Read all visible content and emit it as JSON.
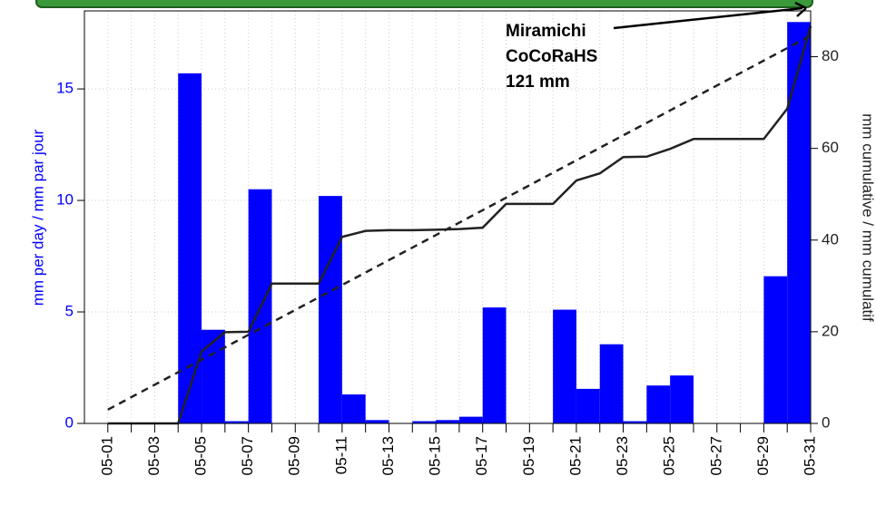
{
  "chart_data": {
    "type": "bar",
    "ylabel": "mm per day / mm par jour",
    "y2label": "mm cumulative / mm cumulatif",
    "annotation": [
      "Miramichi",
      "CoCoRaHS",
      "121 mm"
    ],
    "categories": [
      "05-01",
      null,
      "05-03",
      null,
      "05-05",
      null,
      "05-07",
      null,
      "05-09",
      null,
      "05-11",
      null,
      "05-13",
      null,
      "05-15",
      null,
      "05-17",
      null,
      "05-19",
      null,
      "05-21",
      null,
      "05-23",
      null,
      "05-25",
      null,
      "05-27",
      null,
      "05-29",
      null,
      "05-31"
    ],
    "series": [
      {
        "type": "bar",
        "color": "#0000ff",
        "values": [
          0,
          0,
          0,
          0,
          15.7,
          4.2,
          0.1,
          10.5,
          0,
          0,
          10.2,
          1.3,
          0.15,
          0,
          0.1,
          0.15,
          0.3,
          5.2,
          0,
          0,
          5.1,
          1.55,
          3.55,
          0.1,
          1.7,
          2.15,
          0,
          0,
          0,
          6.6,
          18
        ]
      },
      {
        "type": "line",
        "axis": "y2",
        "color": "#222222",
        "dash": false,
        "values": [
          0,
          0,
          0,
          0,
          15.7,
          19.9,
          20,
          30.5,
          30.5,
          30.5,
          40.7,
          42,
          42.15,
          42.15,
          42.25,
          42.4,
          42.7,
          47.9,
          47.9,
          47.9,
          53,
          54.55,
          58.1,
          58.2,
          59.9,
          62.05,
          62.05,
          62.05,
          62.05,
          68.65,
          86.65
        ]
      },
      {
        "type": "line",
        "axis": "y2",
        "color": "#222222",
        "dash": true,
        "values": [
          3,
          5.72,
          8.44,
          11.16,
          13.88,
          16.6,
          19.32,
          22.04,
          24.76,
          27.48,
          30.2,
          32.92,
          35.64,
          38.36,
          41.08,
          43.8,
          46.52,
          49.24,
          51.96,
          54.68,
          57.4,
          60.12,
          62.84,
          65.56,
          68.28,
          71,
          73.72,
          76.44,
          79.16,
          81.88,
          84.6
        ]
      }
    ],
    "ylim": [
      0,
      18.5
    ],
    "yticks": [
      0,
      5,
      10,
      15
    ],
    "ytick_color": "#0000ff",
    "y2lim": [
      0,
      90
    ],
    "y2ticks": [
      0,
      20,
      40,
      60,
      80
    ],
    "grid": true
  }
}
